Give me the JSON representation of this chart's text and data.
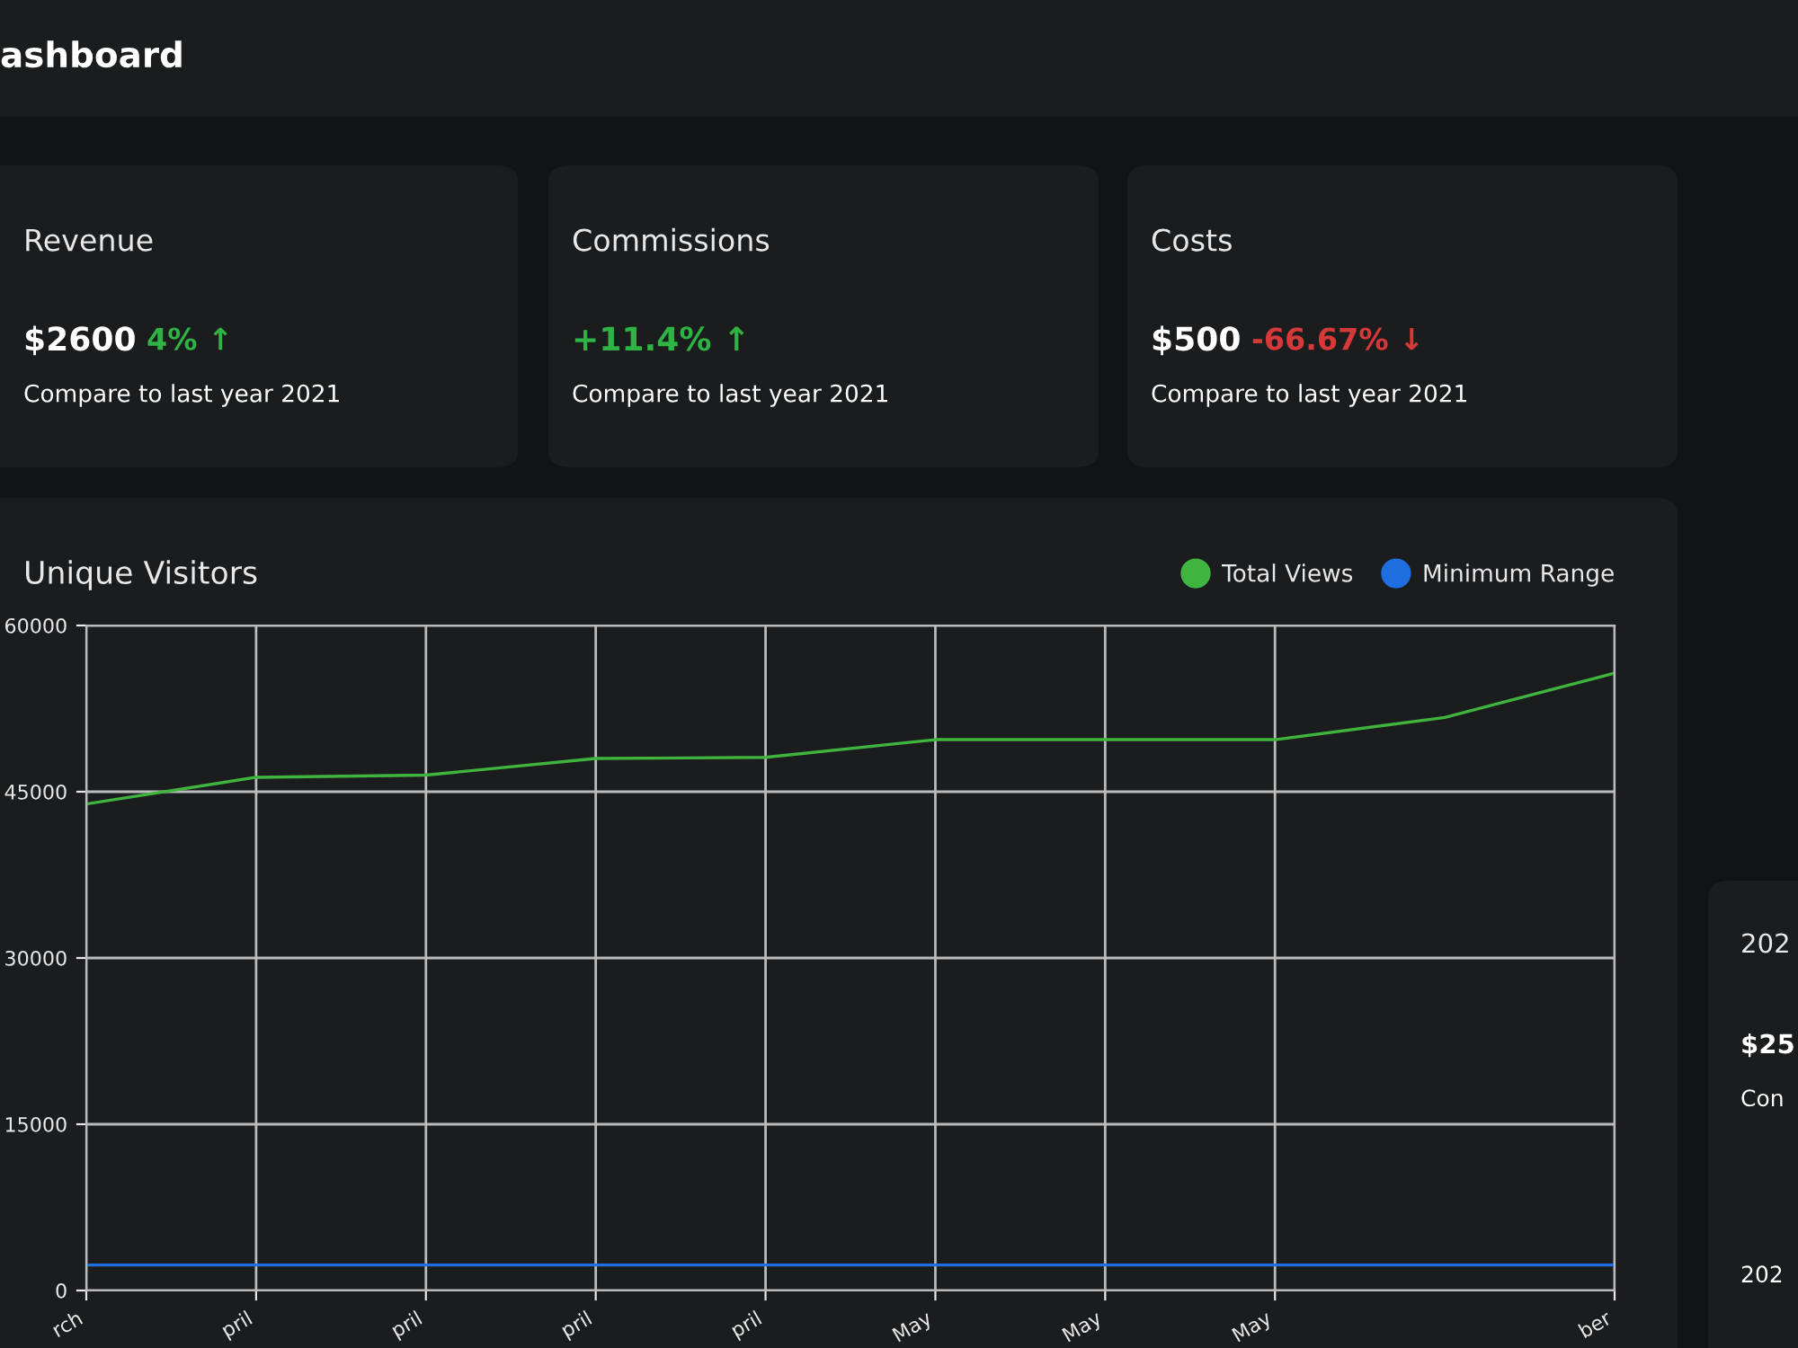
{
  "chart_data": [
    {
      "type": "other",
      "title": "ashboard"
    },
    {
      "type": "other",
      "title": "Revenue",
      "annotations": [
        "$2600",
        "4% ↑",
        "Compare to last year 2021"
      ],
      "colors": [
        "#ffffff",
        "#2fb344",
        "#ffffff"
      ]
    },
    {
      "type": "other",
      "title": "Commissions",
      "annotations": [
        "+11.4% ↑",
        "Compare to last year 2021"
      ],
      "colors": [
        "#2fb344",
        "#ffffff"
      ]
    },
    {
      "type": "other",
      "title": "Costs",
      "annotations": [
        "$500",
        "-66.67% ↓",
        "Compare to last year 2021"
      ],
      "colors": [
        "#ffffff",
        "#d63939",
        "#ffffff"
      ]
    },
    {
      "type": "other",
      "title": "202",
      "annotations": [
        "$25",
        "Con",
        "202"
      ],
      "colors": [
        "#ffffff",
        "#ffffff",
        "#ffffff"
      ]
    },
    {
      "type": "line",
      "title": "Unique Visitors",
      "categories": [
        "rch",
        "pril",
        "pril",
        "pril",
        "pril",
        "May",
        "May",
        "May",
        null,
        "ber"
      ],
      "series": [
        {
          "name": "Total Views",
          "color": "#3fb53f",
          "values": [
            43900,
            46300,
            46500,
            48000,
            48100,
            49700,
            49700,
            49700,
            51700,
            55700
          ]
        },
        {
          "name": "Minimum Range",
          "color": "#1f6fe0",
          "values": [
            2300,
            2300,
            2300,
            2300,
            2300,
            2300,
            2300,
            2300,
            2300,
            2300
          ]
        }
      ],
      "ylim": [
        0,
        60000
      ],
      "yticks": [
        0,
        15000,
        30000,
        45000,
        60000
      ],
      "grid": true,
      "legend": "top right",
      "marker": "none",
      "line_style": "solid"
    }
  ]
}
